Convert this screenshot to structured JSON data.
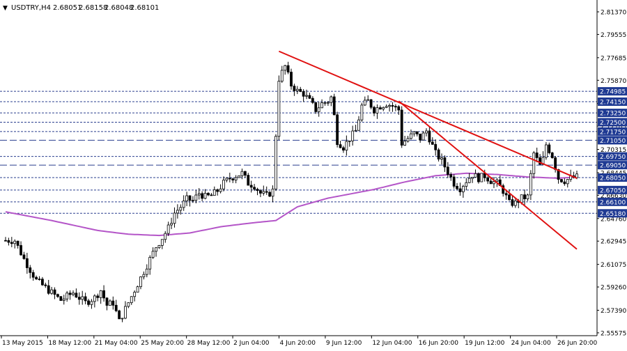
{
  "header": {
    "arrow": "▼",
    "symbol": "USDTRY,H4",
    "open": "2.68051",
    "high": "2.68158",
    "low": "2.68048",
    "close": "2.68101"
  },
  "chart_data": {
    "type": "candlestick",
    "title": "",
    "ylim": [
      2.5557,
      2.8137
    ],
    "y_ticks": [
      "2.81370",
      "2.79555",
      "2.77685",
      "2.75870",
      "2.74000",
      "2.72185",
      "2.70315",
      "2.68445",
      "2.66630",
      "2.64760",
      "2.62945",
      "2.61075",
      "2.59260",
      "2.57390",
      "2.55575"
    ],
    "x_labels": [
      "13 May 2015",
      "18 May 12:00",
      "21 May 04:00",
      "25 May 20:00",
      "28 May 12:00",
      "2 Jun 04:00",
      "4 Jun 20:00",
      "9 Jun 12:00",
      "12 Jun 04:00",
      "16 Jun 20:00",
      "19 Jun 12:00",
      "24 Jun 04:00",
      "26 Jun 20:00"
    ],
    "level_lines": [
      {
        "label": "2.74985",
        "value": 2.74985,
        "style": "dash",
        "highlight": true
      },
      {
        "label": "2.74150",
        "value": 2.7415,
        "style": "dash",
        "highlight": true
      },
      {
        "label": "2.73250",
        "value": 2.7325,
        "style": "dash",
        "highlight": true
      },
      {
        "label": "2.72500",
        "value": 2.725,
        "style": "dash",
        "highlight": true
      },
      {
        "label": "2.71750",
        "value": 2.7175,
        "style": "dash",
        "highlight": true
      },
      {
        "label": "2.71050",
        "value": 2.7105,
        "style": "longdash",
        "highlight": true
      },
      {
        "label": "2.69750",
        "value": 2.6975,
        "style": "dash",
        "highlight": true
      },
      {
        "label": "2.69050",
        "value": 2.6905,
        "style": "longdash",
        "highlight": true
      },
      {
        "label": "2.68050",
        "value": 2.6805,
        "style": "dash",
        "highlight": true
      },
      {
        "label": "2.67050",
        "value": 2.6705,
        "style": "dash",
        "highlight": true
      },
      {
        "label": "2.66100",
        "value": 2.661,
        "style": "dash",
        "highlight": true
      },
      {
        "label": "2.65180",
        "value": 2.6518,
        "style": "dash",
        "highlight": true
      }
    ],
    "price_path": [
      [
        0,
        2.63
      ],
      [
        3,
        2.63
      ],
      [
        6,
        2.615
      ],
      [
        10,
        2.598
      ],
      [
        14,
        2.59
      ],
      [
        18,
        2.582
      ],
      [
        22,
        2.588
      ],
      [
        26,
        2.58
      ],
      [
        29,
        2.584
      ],
      [
        31,
        2.59
      ],
      [
        33,
        2.578
      ],
      [
        35,
        2.58
      ],
      [
        37,
        2.565
      ],
      [
        39,
        2.575
      ],
      [
        41,
        2.585
      ],
      [
        43,
        2.595
      ],
      [
        45,
        2.605
      ],
      [
        47,
        2.615
      ],
      [
        49,
        2.625
      ],
      [
        51,
        2.632
      ],
      [
        53,
        2.64
      ],
      [
        55,
        2.652
      ],
      [
        57,
        2.657
      ],
      [
        59,
        2.663
      ],
      [
        61,
        2.662
      ],
      [
        63,
        2.668
      ],
      [
        65,
        2.665
      ],
      [
        67,
        2.666
      ],
      [
        69,
        2.67
      ],
      [
        71,
        2.676
      ],
      [
        73,
        2.68
      ],
      [
        75,
        2.682
      ],
      [
        77,
        2.684
      ],
      [
        79,
        2.676
      ],
      [
        81,
        2.674
      ],
      [
        83,
        2.668
      ],
      [
        85,
        2.666
      ],
      [
        87,
        2.67
      ],
      [
        89,
        2.76
      ],
      [
        91,
        2.77
      ],
      [
        93,
        2.755
      ],
      [
        95,
        2.75
      ],
      [
        97,
        2.748
      ],
      [
        99,
        2.742
      ],
      [
        101,
        2.735
      ],
      [
        103,
        2.74
      ],
      [
        105,
        2.742
      ],
      [
        106,
        2.745
      ],
      [
        107,
        2.73
      ],
      [
        108,
        2.71
      ],
      [
        110,
        2.705
      ],
      [
        112,
        2.712
      ],
      [
        114,
        2.718
      ],
      [
        116,
        2.738
      ],
      [
        118,
        2.742
      ],
      [
        120,
        2.735
      ],
      [
        122,
        2.738
      ],
      [
        124,
        2.74
      ],
      [
        126,
        2.738
      ],
      [
        128,
        2.735
      ],
      [
        129,
        2.708
      ],
      [
        131,
        2.712
      ],
      [
        133,
        2.716
      ],
      [
        135,
        2.712
      ],
      [
        137,
        2.718
      ],
      [
        138,
        2.712
      ],
      [
        140,
        2.7
      ],
      [
        142,
        2.694
      ],
      [
        144,
        2.685
      ],
      [
        146,
        2.676
      ],
      [
        148,
        2.672
      ],
      [
        150,
        2.678
      ],
      [
        152,
        2.683
      ],
      [
        154,
        2.68
      ],
      [
        156,
        2.682
      ],
      [
        158,
        2.678
      ],
      [
        160,
        2.676
      ],
      [
        162,
        2.67
      ],
      [
        164,
        2.66
      ],
      [
        166,
        2.66
      ],
      [
        168,
        2.664
      ],
      [
        170,
        2.665
      ],
      [
        172,
        2.7
      ],
      [
        174,
        2.69
      ],
      [
        175,
        2.695
      ],
      [
        176,
        2.707
      ],
      [
        178,
        2.698
      ],
      [
        180,
        2.68
      ],
      [
        182,
        2.678
      ],
      [
        184,
        2.68
      ],
      [
        186,
        2.681
      ]
    ],
    "ma_path": [
      [
        0,
        2.653
      ],
      [
        15,
        2.646
      ],
      [
        30,
        2.638
      ],
      [
        40,
        2.635
      ],
      [
        50,
        2.634
      ],
      [
        60,
        2.636
      ],
      [
        70,
        2.641
      ],
      [
        80,
        2.644
      ],
      [
        88,
        2.646
      ],
      [
        95,
        2.657
      ],
      [
        105,
        2.664
      ],
      [
        120,
        2.671
      ],
      [
        130,
        2.677
      ],
      [
        140,
        2.682
      ],
      [
        150,
        2.684
      ],
      [
        160,
        2.683
      ],
      [
        170,
        2.681
      ],
      [
        180,
        2.68
      ],
      [
        186,
        2.681
      ]
    ],
    "trendlines": [
      {
        "x1": 89,
        "y1": 2.782,
        "x2": 186,
        "y2": 2.68
      },
      {
        "x1": 128,
        "y1": 2.742,
        "x2": 186,
        "y2": 2.623
      }
    ],
    "colors": {
      "candle": "#000000",
      "ma": "#b455c8",
      "trendline": "#e01010",
      "level_line": "#2a3f8f",
      "label_bg": "#1f3a93",
      "label_text": "#ffffff",
      "axis_text": "#000000"
    }
  }
}
